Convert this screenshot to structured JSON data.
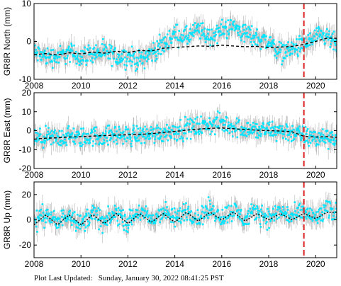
{
  "footer": {
    "label": "Plot Last Updated:",
    "timestamp": "Sunday, January 30, 2022 08:41:25 PST"
  },
  "colors": {
    "data_points": "#00e5ff",
    "error_bars": "#b4b4b4",
    "model_line": "#000000",
    "event_line": "#dd2222"
  },
  "chart_data": [
    {
      "type": "scatter",
      "station": "GR8R",
      "component": "North",
      "ylabel": "GR8R North (mm)",
      "xlim": [
        2008,
        2020.9
      ],
      "ylim": [
        -10,
        10
      ],
      "xticks": [
        2008,
        2010,
        2012,
        2014,
        2016,
        2018,
        2020
      ],
      "yticks": [
        -10,
        0,
        10
      ],
      "event_line_x": 2019.5,
      "series": [
        {
          "role": "observations",
          "x": [
            2008.0,
            2008.5,
            2009.0,
            2009.5,
            2010.0,
            2010.5,
            2011.0,
            2011.5,
            2012.0,
            2012.5,
            2013.0,
            2013.5,
            2014.0,
            2014.5,
            2015.0,
            2015.5,
            2016.0,
            2016.5,
            2017.0,
            2017.5,
            2018.0,
            2018.5,
            2019.0,
            2019.5,
            2020.0,
            2020.5,
            2020.9
          ],
          "y": [
            -3,
            -4,
            -4,
            -3,
            -4,
            -3,
            -3,
            -4,
            -4,
            -5,
            -3,
            -1,
            2,
            1,
            3,
            1,
            3,
            4,
            2,
            1,
            0,
            -3,
            -2,
            -1,
            1,
            1,
            -1
          ]
        },
        {
          "role": "model",
          "x": [
            2008.0,
            2008.5,
            2009.0,
            2009.5,
            2010.0,
            2010.5,
            2011.0,
            2011.5,
            2012.0,
            2012.5,
            2013.0,
            2013.5,
            2014.0,
            2014.5,
            2015.0,
            2015.5,
            2016.0,
            2016.5,
            2017.0,
            2017.5,
            2018.0,
            2018.5,
            2019.0,
            2019.5,
            2020.0,
            2020.5,
            2020.9
          ],
          "y": [
            -3.5,
            -3.2,
            -3.6,
            -3.0,
            -3.3,
            -2.8,
            -3.1,
            -2.6,
            -2.9,
            -2.4,
            -2.5,
            -1.8,
            -1.6,
            -1.4,
            -1.2,
            -1.3,
            -1.0,
            -1.2,
            -1.4,
            -1.3,
            -1.6,
            -1.5,
            -1.3,
            -0.8,
            0.0,
            0.9,
            0.8
          ]
        }
      ]
    },
    {
      "type": "scatter",
      "station": "GR8R",
      "component": "East",
      "ylabel": "GR8R East (mm)",
      "xlim": [
        2008,
        2020.9
      ],
      "ylim": [
        -20,
        20
      ],
      "xticks": [
        2008,
        2010,
        2012,
        2014,
        2016,
        2018,
        2020
      ],
      "yticks": [
        -20,
        -10,
        0,
        10,
        20
      ],
      "event_line_x": 2019.5,
      "series": [
        {
          "role": "observations",
          "x": [
            2008.0,
            2008.5,
            2009.0,
            2009.5,
            2010.0,
            2010.5,
            2011.0,
            2011.5,
            2012.0,
            2012.5,
            2013.0,
            2013.5,
            2014.0,
            2014.5,
            2015.0,
            2015.5,
            2016.0,
            2016.5,
            2017.0,
            2017.5,
            2018.0,
            2018.5,
            2019.0,
            2019.5,
            2020.0,
            2020.5,
            2020.9
          ],
          "y": [
            -5,
            -4,
            -4,
            -3,
            -4,
            -3,
            -3,
            -2,
            -3,
            -2,
            -2,
            -1,
            0,
            1,
            2,
            3,
            4,
            2,
            1,
            0,
            0,
            0,
            -1,
            -3,
            -4,
            -3,
            -4
          ]
        },
        {
          "role": "model",
          "x": [
            2008.0,
            2008.5,
            2009.0,
            2009.5,
            2010.0,
            2010.5,
            2011.0,
            2011.5,
            2012.0,
            2012.5,
            2013.0,
            2013.5,
            2014.0,
            2014.5,
            2015.0,
            2015.5,
            2016.0,
            2016.5,
            2017.0,
            2017.5,
            2018.0,
            2018.5,
            2019.0,
            2019.5,
            2020.0,
            2020.5,
            2020.9
          ],
          "y": [
            -4.5,
            -4.0,
            -3.8,
            -3.4,
            -3.2,
            -2.9,
            -2.6,
            -2.4,
            -2.2,
            -2.0,
            -1.6,
            -1.0,
            -0.4,
            0.2,
            0.8,
            1.2,
            1.4,
            1.0,
            0.6,
            0.2,
            0.0,
            -0.2,
            -0.6,
            -3.0,
            -3.4,
            -3.2,
            -3.6
          ]
        }
      ]
    },
    {
      "type": "scatter",
      "station": "GR8R",
      "component": "Up",
      "ylabel": "GR8R Up (mm)",
      "xlim": [
        2008,
        2020.9
      ],
      "ylim": [
        -30,
        30
      ],
      "xticks": [
        2008,
        2010,
        2012,
        2014,
        2016,
        2018,
        2020
      ],
      "yticks": [
        -20,
        0,
        20
      ],
      "event_line_x": 2019.5,
      "series": [
        {
          "role": "observations",
          "x": [
            2008.0,
            2008.5,
            2009.0,
            2009.5,
            2010.0,
            2010.5,
            2011.0,
            2011.5,
            2012.0,
            2012.5,
            2013.0,
            2013.5,
            2014.0,
            2014.5,
            2015.0,
            2015.5,
            2016.0,
            2016.5,
            2017.0,
            2017.5,
            2018.0,
            2018.5,
            2019.0,
            2019.5,
            2020.0,
            2020.5,
            2020.9
          ],
          "y": [
            -2,
            5,
            -3,
            6,
            -4,
            6,
            -3,
            6,
            -2,
            7,
            -1,
            7,
            0,
            8,
            1,
            9,
            2,
            8,
            0,
            7,
            1,
            7,
            2,
            6,
            1,
            8,
            5
          ]
        },
        {
          "role": "model",
          "x": [
            2008.0,
            2008.5,
            2009.0,
            2009.5,
            2010.0,
            2010.5,
            2011.0,
            2011.5,
            2012.0,
            2012.5,
            2013.0,
            2013.5,
            2014.0,
            2014.5,
            2015.0,
            2015.5,
            2016.0,
            2016.5,
            2017.0,
            2017.5,
            2018.0,
            2018.5,
            2019.0,
            2019.5,
            2020.0,
            2020.5,
            2020.9
          ],
          "y": [
            -4,
            4,
            -4,
            4,
            -4,
            4,
            -3,
            5,
            -3,
            5,
            -2,
            5,
            -2,
            6,
            -1,
            6,
            0,
            6,
            -1,
            5,
            0,
            5,
            0,
            5,
            1,
            6,
            6
          ]
        }
      ]
    }
  ]
}
